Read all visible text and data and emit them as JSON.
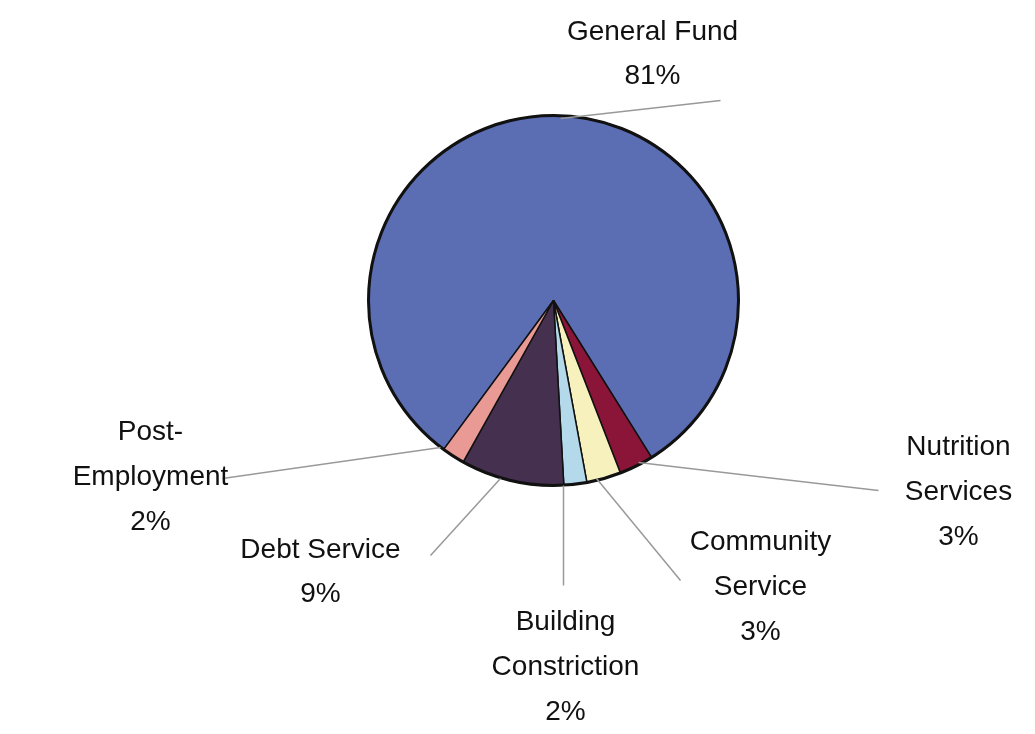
{
  "chart_data": {
    "type": "pie",
    "categories": [
      "General Fund",
      "Nutrition Services",
      "Community Service",
      "Building Constriction",
      "Debt Service",
      "Post-Employment"
    ],
    "values": [
      81,
      3,
      3,
      2,
      9,
      2
    ],
    "value_labels": [
      "81%",
      "3%",
      "3%",
      "2%",
      "9%",
      "2%"
    ],
    "colors": [
      "#5b6db3",
      "#8a1538",
      "#f6f1bd",
      "#b4d9ea",
      "#46304f",
      "#ea9a94"
    ]
  }
}
